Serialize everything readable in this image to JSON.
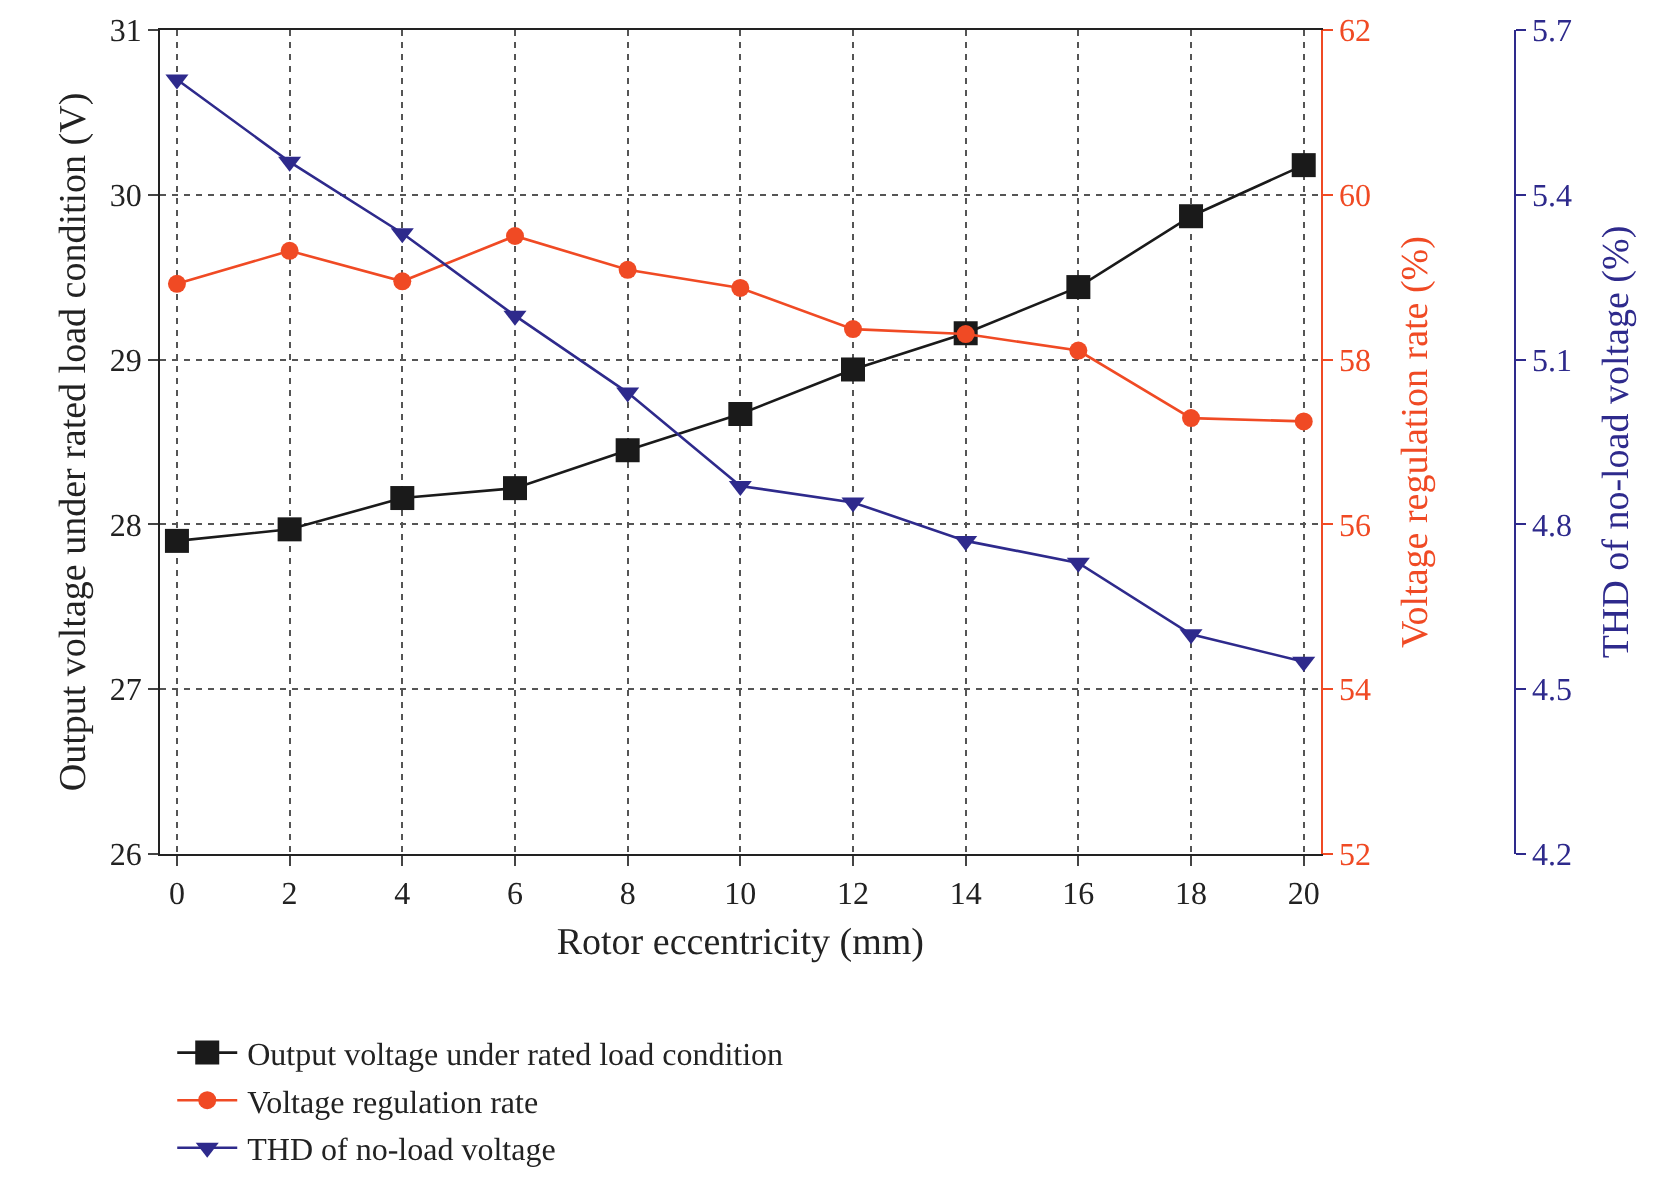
{
  "chart_data": {
    "type": "line",
    "xlabel": "Rotor eccentricity (mm)",
    "ylabel": "Output voltage under rated load condition (V)",
    "y2label": "Voltage regulation rate (%)",
    "y3label": "THD of no-load voltage (%)",
    "x": [
      0,
      2,
      4,
      6,
      8,
      10,
      12,
      14,
      16,
      18,
      20
    ],
    "xlim": [
      -0.3,
      20.3
    ],
    "xticks": [
      0,
      2,
      4,
      6,
      8,
      10,
      12,
      14,
      16,
      18,
      20
    ],
    "ylim": [
      26,
      31
    ],
    "yticks": [
      26,
      27,
      28,
      29,
      30,
      31
    ],
    "y2lim": [
      52,
      62
    ],
    "y2ticks": [
      52,
      54,
      56,
      58,
      60,
      62
    ],
    "y3lim": [
      4.2,
      5.7
    ],
    "y3ticks": [
      4.2,
      4.5,
      4.8,
      5.1,
      5.4,
      5.7
    ],
    "grid": true,
    "legend": "bottom",
    "line_style": "solid",
    "series": [
      {
        "name": "Output voltage under rated load condition",
        "color": "#1a1a1a",
        "marker": "square",
        "values": [
          27.9,
          27.97,
          28.16,
          28.22,
          28.45,
          28.67,
          28.94,
          29.16,
          29.44,
          29.87,
          30.18
        ]
      },
      {
        "name": "Voltage regulation rate",
        "color": "#f04a24",
        "marker": "circle",
        "axis": "y2",
        "values": [
          58.92,
          59.32,
          58.95,
          59.5,
          59.09,
          58.87,
          58.37,
          58.31,
          58.11,
          57.29,
          57.25
        ]
      },
      {
        "name": "THD of no-load voltage",
        "color": "#2e2a8c",
        "marker": "triangle",
        "axis": "y3",
        "values": [
          5.61,
          5.46,
          5.33,
          5.18,
          5.04,
          4.87,
          4.84,
          4.77,
          4.73,
          4.6,
          4.55
        ]
      }
    ]
  }
}
